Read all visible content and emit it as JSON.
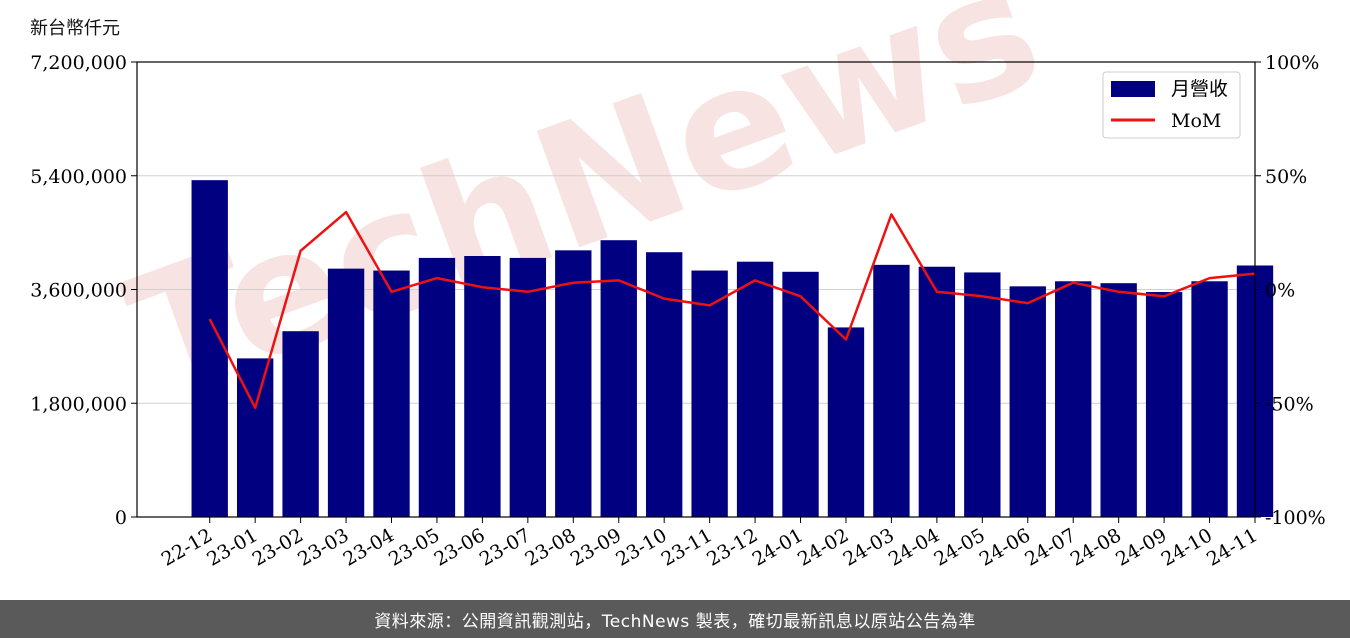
{
  "unit_label": "新台幣仟元",
  "footer_text": "資料來源：公開資訊觀測站，TechNews 製表，確切最新訊息以原站公告為準",
  "watermark": "TechNews",
  "colors": {
    "bar": "#000080",
    "line": "#ee1111",
    "grid": "#d0d0d0",
    "watermark": "#f6dada"
  },
  "chart_data": {
    "type": "bar",
    "categories": [
      "22-12",
      "23-01",
      "23-02",
      "23-03",
      "23-04",
      "23-05",
      "23-06",
      "23-07",
      "23-08",
      "23-09",
      "23-10",
      "23-11",
      "23-12",
      "24-01",
      "24-02",
      "24-03",
      "24-04",
      "24-05",
      "24-06",
      "24-07",
      "24-08",
      "24-09",
      "24-10",
      "24-11"
    ],
    "series": [
      {
        "name": "月營收",
        "type": "bar",
        "axis": "left",
        "values": [
          5330000,
          2510000,
          2940000,
          3930000,
          3900000,
          4100000,
          4130000,
          4100000,
          4220000,
          4380000,
          4190000,
          3900000,
          4040000,
          3880000,
          3000000,
          3990000,
          3960000,
          3870000,
          3650000,
          3730000,
          3700000,
          3560000,
          3730000,
          3980000
        ]
      },
      {
        "name": "MoM",
        "type": "line",
        "axis": "right",
        "values": [
          -13,
          -52,
          17,
          34,
          -1,
          5,
          1,
          -1,
          3,
          4,
          -4,
          -7,
          4,
          -3,
          -22,
          33,
          -1,
          -3,
          -6,
          3,
          -1,
          -3,
          5,
          7
        ]
      }
    ],
    "ylim_left": [
      0,
      7200000
    ],
    "yticks_left": [
      "0",
      "1,800,000",
      "3,600,000",
      "5,400,000",
      "7,200,000"
    ],
    "ylim_right": [
      -100,
      100
    ],
    "yticks_right": [
      "-100%",
      "-50%",
      "0%",
      "50%",
      "100%"
    ],
    "grid": true,
    "legend_position": "top-right"
  }
}
